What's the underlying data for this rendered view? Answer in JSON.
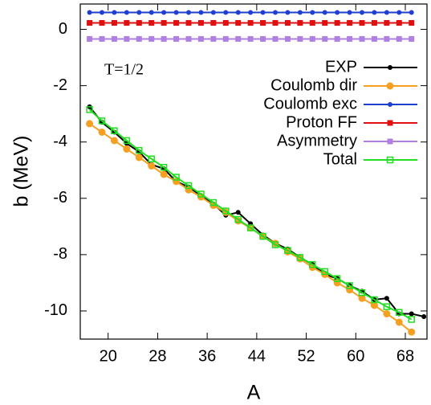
{
  "chart_data": {
    "type": "line",
    "xlabel": "A",
    "ylabel": "b (MeV)",
    "annotation": "T=1/2",
    "xlim": [
      15.5,
      71.5
    ],
    "xticks": [
      20,
      28,
      36,
      44,
      52,
      60,
      68
    ],
    "ylim": [
      -11,
      0.9
    ],
    "yticks": [
      0,
      -2,
      -4,
      -6,
      -8,
      -10
    ],
    "legend": "upper right",
    "series": [
      {
        "name": "EXP",
        "color": "#000000",
        "marker": "circle",
        "x": [
          17,
          19,
          21,
          23,
          25,
          27,
          29,
          31,
          33,
          35,
          37,
          39,
          41,
          43,
          45,
          47,
          49,
          51,
          53,
          55,
          57,
          59,
          61,
          63,
          65,
          67,
          69,
          71
        ],
        "values": [
          -2.75,
          -3.3,
          -3.65,
          -4.05,
          -4.35,
          -4.8,
          -4.95,
          -5.4,
          -5.6,
          -5.9,
          -6.2,
          -6.6,
          -6.5,
          -6.9,
          -7.3,
          -7.6,
          -7.8,
          -8.1,
          -8.35,
          -8.7,
          -8.85,
          -9.1,
          -9.3,
          -9.6,
          -9.55,
          -10.1,
          -10.1,
          -10.2
        ]
      },
      {
        "name": "Coulomb dir",
        "color": "#f5a020",
        "marker": "big-circle",
        "x": [
          17,
          19,
          21,
          23,
          25,
          27,
          29,
          31,
          33,
          35,
          37,
          39,
          41,
          43,
          45,
          47,
          49,
          51,
          53,
          55,
          57,
          59,
          61,
          63,
          65,
          67,
          69
        ],
        "values": [
          -3.35,
          -3.65,
          -3.95,
          -4.25,
          -4.55,
          -4.85,
          -5.15,
          -5.4,
          -5.7,
          -5.95,
          -6.25,
          -6.5,
          -6.8,
          -7.05,
          -7.35,
          -7.6,
          -7.9,
          -8.15,
          -8.45,
          -8.7,
          -9.0,
          -9.25,
          -9.55,
          -9.8,
          -10.1,
          -10.4,
          -10.75
        ]
      },
      {
        "name": "Coulomb exc",
        "color": "#1f3fd0",
        "marker": "circle",
        "x": [
          17,
          19,
          21,
          23,
          25,
          27,
          29,
          31,
          33,
          35,
          37,
          39,
          41,
          43,
          45,
          47,
          49,
          51,
          53,
          55,
          57,
          59,
          61,
          63,
          65,
          67,
          69
        ],
        "values": [
          0.6,
          0.6,
          0.6,
          0.6,
          0.6,
          0.6,
          0.6,
          0.6,
          0.6,
          0.6,
          0.6,
          0.6,
          0.6,
          0.6,
          0.6,
          0.6,
          0.6,
          0.6,
          0.6,
          0.6,
          0.6,
          0.6,
          0.6,
          0.6,
          0.6,
          0.6,
          0.6
        ]
      },
      {
        "name": "Proton FF",
        "color": "#e01010",
        "marker": "square",
        "x": [
          17,
          19,
          21,
          23,
          25,
          27,
          29,
          31,
          33,
          35,
          37,
          39,
          41,
          43,
          45,
          47,
          49,
          51,
          53,
          55,
          57,
          59,
          61,
          63,
          65,
          67,
          69
        ],
        "values": [
          0.23,
          0.23,
          0.23,
          0.23,
          0.23,
          0.23,
          0.23,
          0.23,
          0.23,
          0.23,
          0.23,
          0.23,
          0.23,
          0.23,
          0.23,
          0.23,
          0.23,
          0.23,
          0.23,
          0.23,
          0.23,
          0.23,
          0.23,
          0.23,
          0.23,
          0.23,
          0.23
        ]
      },
      {
        "name": "Asymmetry",
        "color": "#b080e0",
        "marker": "square",
        "x": [
          17,
          19,
          21,
          23,
          25,
          27,
          29,
          31,
          33,
          35,
          37,
          39,
          41,
          43,
          45,
          47,
          49,
          51,
          53,
          55,
          57,
          59,
          61,
          63,
          65,
          67,
          69
        ],
        "values": [
          -0.34,
          -0.34,
          -0.34,
          -0.34,
          -0.34,
          -0.34,
          -0.34,
          -0.34,
          -0.34,
          -0.34,
          -0.34,
          -0.34,
          -0.34,
          -0.34,
          -0.34,
          -0.34,
          -0.34,
          -0.34,
          -0.34,
          -0.34,
          -0.34,
          -0.34,
          -0.34,
          -0.34,
          -0.34,
          -0.34,
          -0.34
        ]
      },
      {
        "name": "Total",
        "color": "#22dd22",
        "marker": "open-square",
        "x": [
          17,
          19,
          21,
          23,
          25,
          27,
          29,
          31,
          33,
          35,
          37,
          39,
          41,
          43,
          45,
          47,
          49,
          51,
          53,
          55,
          57,
          59,
          61,
          63,
          65,
          67,
          69
        ],
        "values": [
          -2.85,
          -3.25,
          -3.6,
          -3.95,
          -4.3,
          -4.6,
          -4.9,
          -5.25,
          -5.55,
          -5.85,
          -6.15,
          -6.45,
          -6.75,
          -7.05,
          -7.35,
          -7.65,
          -7.85,
          -8.1,
          -8.35,
          -8.6,
          -8.85,
          -9.1,
          -9.35,
          -9.6,
          -9.85,
          -10.05,
          -10.3
        ]
      }
    ]
  }
}
